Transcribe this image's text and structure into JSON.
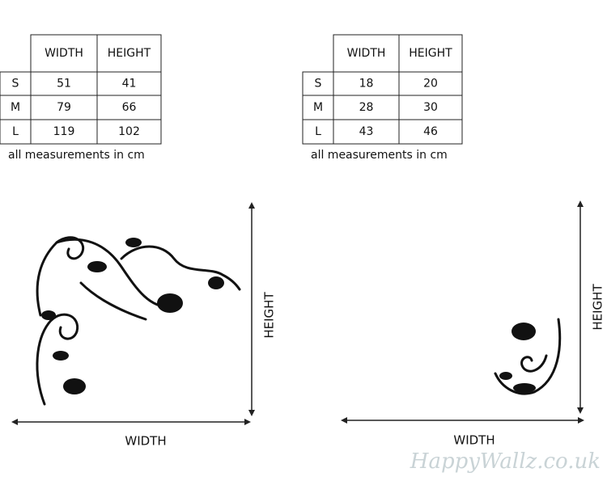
{
  "tables": [
    {
      "header": [
        "WIDTH",
        "HEIGHT"
      ],
      "rows": [
        [
          "S",
          51,
          41
        ],
        [
          "M",
          79,
          66
        ],
        [
          "L",
          119,
          102
        ]
      ],
      "note": "all measurements in cm"
    },
    {
      "header": [
        "WIDTH",
        "HEIGHT"
      ],
      "rows": [
        [
          "S",
          18,
          20
        ],
        [
          "M",
          28,
          30
        ],
        [
          "L",
          43,
          46
        ]
      ],
      "note": "all measurements in cm"
    }
  ],
  "diagrams": [
    {
      "width_label": "WIDTH",
      "height_label": "HEIGHT"
    },
    {
      "width_label": "WIDTH",
      "height_label": "HEIGHT"
    }
  ],
  "watermark": "HappyWallz.co.uk"
}
